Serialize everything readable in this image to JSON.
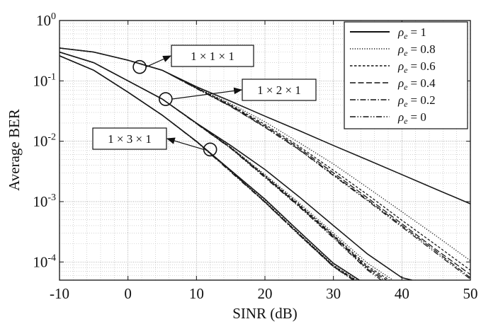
{
  "chart_data": {
    "type": "line",
    "xlabel": "SINR (dB)",
    "ylabel": "Average BER",
    "xscale": "linear",
    "yscale": "log",
    "xlim": [
      -10,
      50
    ],
    "ylim": [
      5e-05,
      1
    ],
    "grid": true,
    "legend_position": "top-right",
    "x_ticks": [
      "-10",
      "0",
      "10",
      "20",
      "30",
      "40",
      "50"
    ],
    "y_ticks": [
      {
        "value": 1,
        "base": "10",
        "exp": "0"
      },
      {
        "value": 0.1,
        "base": "10",
        "exp": "-1"
      },
      {
        "value": 0.01,
        "base": "10",
        "exp": "-2"
      },
      {
        "value": 0.001,
        "base": "10",
        "exp": "-3"
      },
      {
        "value": 0.0001,
        "base": "10",
        "exp": "-4"
      }
    ],
    "legend": [
      {
        "symbol": "ρ",
        "sub": "e",
        "text": "=  1",
        "dash": "solid"
      },
      {
        "symbol": "ρ",
        "sub": "e",
        "text": "= 0.8",
        "dash": "dotted"
      },
      {
        "symbol": "ρ",
        "sub": "e",
        "text": "= 0.6",
        "dash": "dashed-short"
      },
      {
        "symbol": "ρ",
        "sub": "e",
        "text": "= 0.4",
        "dash": "dashed-long"
      },
      {
        "symbol": "ρ",
        "sub": "e",
        "text": "= 0.2",
        "dash": "dashdot"
      },
      {
        "symbol": "ρ",
        "sub": "e",
        "text": "=  0",
        "dash": "dashdotdot"
      }
    ],
    "annotations": [
      {
        "text": "1 × 1 × 1",
        "marker_xy": [
          1.7,
          0.17
        ]
      },
      {
        "text": "1 × 2 × 1",
        "marker_xy": [
          5.5,
          0.05
        ]
      },
      {
        "text": "1 × 3 × 1",
        "marker_xy": [
          12,
          0.0073
        ]
      }
    ],
    "groups": [
      {
        "name": "1 × 1 × 1",
        "series": [
          {
            "rho_e": 1,
            "x": [
              -10,
              -5,
              0,
              5,
              10,
              15,
              20,
              25,
              30,
              35,
              40,
              45,
              50
            ],
            "y": [
              0.35,
              0.3,
              0.22,
              0.15,
              0.08,
              0.046,
              0.026,
              0.015,
              0.0085,
              0.0049,
              0.0028,
              0.0016,
              0.00092
            ]
          },
          {
            "rho_e": 0.8,
            "x": [
              -10,
              -5,
              0,
              5,
              10,
              15,
              20,
              25,
              30,
              35,
              40,
              45,
              50
            ],
            "y": [
              0.35,
              0.3,
              0.22,
              0.15,
              0.078,
              0.042,
              0.021,
              0.0095,
              0.0042,
              0.0017,
              0.00068,
              0.00027,
              0.000105
            ]
          },
          {
            "rho_e": 0.6,
            "x": [
              -10,
              -5,
              0,
              5,
              10,
              15,
              20,
              25,
              30,
              35,
              40,
              45,
              50
            ],
            "y": [
              0.35,
              0.3,
              0.22,
              0.15,
              0.077,
              0.04,
              0.019,
              0.0082,
              0.0033,
              0.0013,
              0.00049,
              0.00019,
              7.3e-05
            ]
          },
          {
            "rho_e": 0.4,
            "x": [
              -10,
              -5,
              0,
              5,
              10,
              15,
              20,
              25,
              30,
              35,
              40,
              45,
              50
            ],
            "y": [
              0.35,
              0.3,
              0.22,
              0.15,
              0.076,
              0.039,
              0.018,
              0.0077,
              0.003,
              0.00115,
              0.00043,
              0.00016,
              6.2e-05
            ]
          },
          {
            "rho_e": 0.2,
            "x": [
              -10,
              -5,
              0,
              5,
              10,
              15,
              20,
              25,
              30,
              35,
              40,
              45,
              50
            ],
            "y": [
              0.35,
              0.3,
              0.22,
              0.15,
              0.075,
              0.038,
              0.0172,
              0.0073,
              0.0028,
              0.00107,
              0.0004,
              0.00015,
              5.5e-05
            ]
          },
          {
            "rho_e": 0,
            "x": [
              -10,
              -5,
              0,
              5,
              10,
              15,
              20,
              25,
              30,
              35,
              40,
              45,
              50
            ],
            "y": [
              0.35,
              0.3,
              0.22,
              0.15,
              0.0745,
              0.0375,
              0.017,
              0.0072,
              0.0027,
              0.00103,
              0.00038,
              0.00014,
              5.2e-05
            ]
          }
        ]
      },
      {
        "name": "1 × 2 × 1",
        "series": [
          {
            "rho_e": 1,
            "x": [
              -10,
              -5,
              0,
              5,
              10,
              15,
              20,
              25,
              30,
              35,
              40,
              41.5
            ],
            "y": [
              0.3,
              0.2,
              0.1,
              0.05,
              0.02,
              0.0085,
              0.0034,
              0.0012,
              0.0004,
              0.000135,
              5.5e-05,
              5e-05
            ]
          },
          {
            "rho_e": 0.8,
            "x": [
              -10,
              -5,
              0,
              5,
              10,
              15,
              20,
              25,
              30,
              35,
              38.7
            ],
            "y": [
              0.3,
              0.2,
              0.1,
              0.05,
              0.02,
              0.008,
              0.0028,
              0.00095,
              0.0003,
              9.5e-05,
              5e-05
            ]
          },
          {
            "rho_e": 0.6,
            "x": [
              -10,
              -5,
              0,
              5,
              10,
              15,
              20,
              25,
              30,
              35,
              38.2
            ],
            "y": [
              0.3,
              0.2,
              0.1,
              0.05,
              0.02,
              0.0079,
              0.0027,
              0.0009,
              0.00028,
              8.5e-05,
              5e-05
            ]
          },
          {
            "rho_e": 0.4,
            "x": [
              -10,
              -5,
              0,
              5,
              10,
              15,
              20,
              25,
              30,
              35,
              37.8
            ],
            "y": [
              0.3,
              0.2,
              0.1,
              0.05,
              0.0198,
              0.0078,
              0.0026,
              0.00086,
              0.00027,
              8e-05,
              5e-05
            ]
          },
          {
            "rho_e": 0.2,
            "x": [
              -10,
              -5,
              0,
              5,
              10,
              15,
              20,
              25,
              30,
              35,
              37.4
            ],
            "y": [
              0.3,
              0.2,
              0.1,
              0.05,
              0.0196,
              0.0077,
              0.0026,
              0.00084,
              0.00026,
              7.6e-05,
              5e-05
            ]
          },
          {
            "rho_e": 0,
            "x": [
              -10,
              -5,
              0,
              5,
              10,
              15,
              20,
              25,
              30,
              35,
              37
            ],
            "y": [
              0.3,
              0.2,
              0.1,
              0.05,
              0.0195,
              0.0076,
              0.0025,
              0.00082,
              0.00025,
              7.3e-05,
              5e-05
            ]
          }
        ]
      },
      {
        "name": "1 × 3 × 1",
        "series": [
          {
            "rho_e": 1,
            "x": [
              -10,
              -5,
              0,
              5,
              10,
              15,
              20,
              25,
              30,
              33.8
            ],
            "y": [
              0.26,
              0.15,
              0.065,
              0.027,
              0.01,
              0.0033,
              0.0011,
              0.00032,
              9.5e-05,
              5e-05
            ]
          },
          {
            "rho_e": 0.8,
            "x": [
              -10,
              -5,
              0,
              5,
              10,
              15,
              20,
              25,
              30,
              33.5
            ],
            "y": [
              0.26,
              0.15,
              0.065,
              0.027,
              0.01,
              0.0033,
              0.00105,
              0.0003,
              9e-05,
              5e-05
            ]
          },
          {
            "rho_e": 0.6,
            "x": [
              -10,
              -5,
              0,
              5,
              10,
              15,
              20,
              25,
              30,
              33.3
            ],
            "y": [
              0.26,
              0.15,
              0.065,
              0.027,
              0.01,
              0.0032,
              0.001,
              0.00029,
              8.7e-05,
              5e-05
            ]
          },
          {
            "rho_e": 0.4,
            "x": [
              -10,
              -5,
              0,
              5,
              10,
              15,
              20,
              25,
              30,
              33.1
            ],
            "y": [
              0.26,
              0.15,
              0.065,
              0.027,
              0.0099,
              0.0032,
              0.00099,
              0.00029,
              8.5e-05,
              5e-05
            ]
          },
          {
            "rho_e": 0.2,
            "x": [
              -10,
              -5,
              0,
              5,
              10,
              15,
              20,
              25,
              30,
              33
            ],
            "y": [
              0.26,
              0.15,
              0.065,
              0.027,
              0.0099,
              0.0032,
              0.00098,
              0.00028,
              8.4e-05,
              5e-05
            ]
          },
          {
            "rho_e": 0,
            "x": [
              -10,
              -5,
              0,
              5,
              10,
              15,
              20,
              25,
              30,
              32.9
            ],
            "y": [
              0.26,
              0.15,
              0.065,
              0.027,
              0.0098,
              0.0031,
              0.00097,
              0.00028,
              8.3e-05,
              5e-05
            ]
          }
        ]
      }
    ]
  }
}
